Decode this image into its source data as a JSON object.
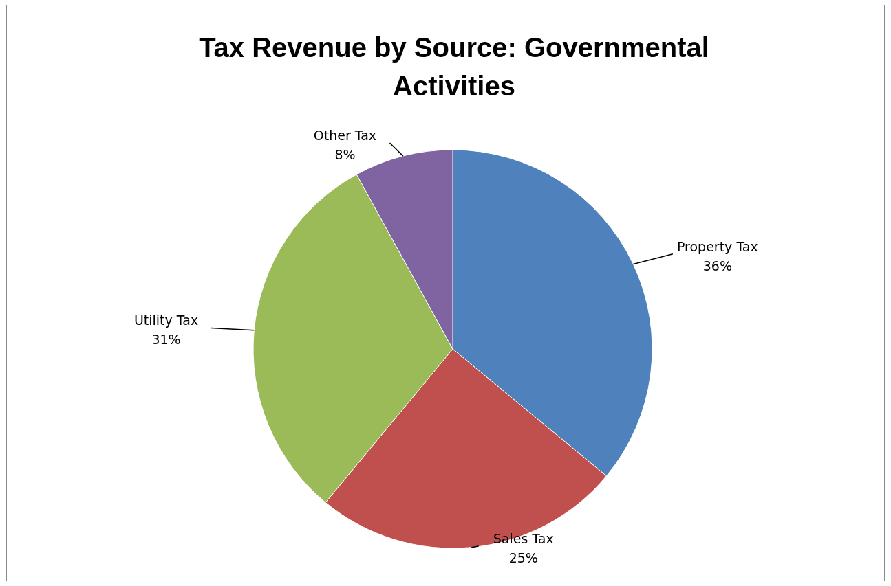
{
  "chart_data": {
    "type": "pie",
    "title": "Tax Revenue by Source: Governmental Activities",
    "categories": [
      "Property Tax",
      "Sales Tax",
      "Utility Tax",
      "Other Tax"
    ],
    "values": [
      36,
      25,
      31,
      8
    ],
    "value_labels": [
      "36%",
      "25%",
      "31%",
      "8%"
    ],
    "colors": [
      "#4f81bd",
      "#c0504d",
      "#9bbb59",
      "#8064a2"
    ]
  }
}
